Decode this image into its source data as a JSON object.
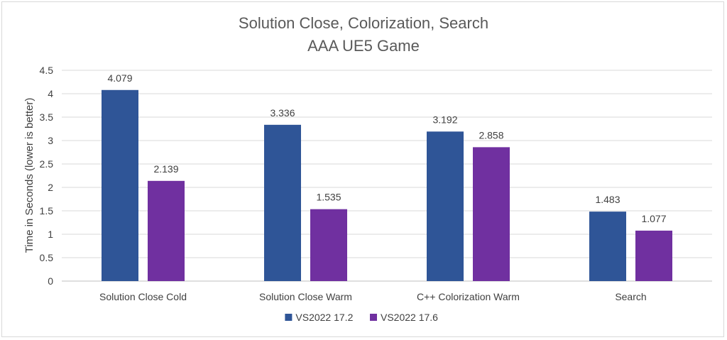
{
  "chart_data": {
    "type": "bar",
    "title": "Solution Close, Colorization, Search",
    "subtitle": "AAA UE5 Game",
    "xlabel": "",
    "ylabel": "Time in Seconds (lower is better)",
    "ylim": [
      0,
      4.5
    ],
    "yticks": [
      "0",
      "0.5",
      "1",
      "1.5",
      "2",
      "2.5",
      "3",
      "3.5",
      "4",
      "4.5"
    ],
    "grid": true,
    "legend_position": "bottom",
    "categories": [
      "Solution Close Cold",
      "Solution Close Warm",
      "C++ Colorization Warm",
      "Search"
    ],
    "series": [
      {
        "name": "VS2022 17.2",
        "color": "#2f5597",
        "values": [
          4.079,
          3.336,
          3.192,
          1.483
        ],
        "labels": [
          "4.079",
          "3.336",
          "3.192",
          "1.483"
        ]
      },
      {
        "name": "VS2022 17.6",
        "color": "#7030a0",
        "values": [
          2.139,
          1.535,
          2.858,
          1.077
        ],
        "labels": [
          "2.139",
          "1.535",
          "2.858",
          "1.077"
        ]
      }
    ]
  }
}
